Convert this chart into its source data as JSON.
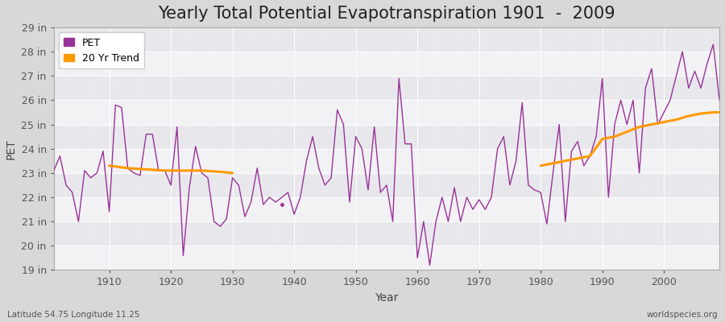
{
  "title": "Yearly Total Potential Evapotranspiration 1901  -  2009",
  "xlabel": "Year",
  "ylabel": "PET",
  "footer_left": "Latitude 54.75 Longitude 11.25",
  "footer_right": "worldspecies.org",
  "ylim": [
    19,
    29
  ],
  "xlim": [
    1901,
    2009
  ],
  "ytick_labels": [
    "19 in",
    "20 in",
    "21 in",
    "22 in",
    "23 in",
    "24 in",
    "25 in",
    "26 in",
    "27 in",
    "28 in",
    "29 in"
  ],
  "ytick_values": [
    19,
    20,
    21,
    22,
    23,
    24,
    25,
    26,
    27,
    28,
    29
  ],
  "xtick_values": [
    1910,
    1920,
    1930,
    1940,
    1950,
    1960,
    1970,
    1980,
    1990,
    2000
  ],
  "pet_color": "#993399",
  "trend_color": "#FF9900",
  "background_color": "#E8E8E8",
  "plot_bg_color": "#F0F0F0",
  "grid_color": "#FFFFFF",
  "pet_data": {
    "years": [
      1901,
      1902,
      1903,
      1904,
      1905,
      1906,
      1907,
      1908,
      1909,
      1910,
      1911,
      1912,
      1913,
      1914,
      1915,
      1916,
      1917,
      1918,
      1919,
      1920,
      1921,
      1922,
      1923,
      1924,
      1925,
      1926,
      1927,
      1928,
      1929,
      1930,
      1931,
      1932,
      1933,
      1934,
      1935,
      1936,
      1937,
      1939,
      1940,
      1941,
      1942,
      1943,
      1944,
      1945,
      1946,
      1947,
      1948,
      1949,
      1950,
      1951,
      1952,
      1953,
      1954,
      1955,
      1956,
      1957,
      1958,
      1959,
      1960,
      1961,
      1962,
      1963,
      1964,
      1965,
      1966,
      1967,
      1968,
      1969,
      1970,
      1971,
      1972,
      1973,
      1974,
      1975,
      1976,
      1977,
      1978,
      1979,
      1980,
      1981,
      1982,
      1983,
      1984,
      1985,
      1986,
      1987,
      1988,
      1989,
      1990,
      1991,
      1992,
      1993,
      1994,
      1995,
      1996,
      1997,
      1998,
      1999,
      2000,
      2001,
      2002,
      2003,
      2004,
      2005,
      2006,
      2007,
      2008,
      2009
    ],
    "values": [
      23.1,
      23.7,
      22.5,
      22.2,
      21.0,
      23.1,
      22.8,
      23.0,
      23.9,
      21.4,
      25.8,
      25.7,
      23.2,
      23.0,
      22.9,
      24.6,
      24.6,
      23.1,
      23.1,
      22.5,
      24.9,
      19.6,
      22.4,
      24.1,
      23.0,
      22.8,
      21.0,
      20.8,
      21.1,
      22.8,
      22.5,
      21.2,
      21.8,
      23.2,
      21.7,
      22.0,
      21.8,
      22.2,
      21.3,
      22.0,
      23.5,
      24.5,
      23.2,
      22.5,
      22.8,
      25.6,
      25.0,
      21.8,
      24.5,
      24.0,
      22.3,
      24.9,
      22.2,
      22.5,
      21.0,
      26.9,
      24.2,
      24.2,
      19.5,
      21.0,
      19.2,
      21.0,
      22.0,
      21.0,
      22.4,
      21.0,
      22.0,
      21.5,
      21.9,
      21.5,
      22.0,
      24.0,
      24.5,
      22.5,
      23.5,
      25.9,
      22.5,
      22.3,
      22.2,
      20.9,
      23.0,
      25.0,
      21.0,
      23.9,
      24.3,
      23.3,
      23.7,
      24.5,
      26.9,
      22.0,
      25.0,
      26.0,
      25.0,
      26.0,
      23.0,
      26.5,
      27.3,
      25.0,
      25.5,
      26.0,
      27.0,
      28.0,
      26.5,
      27.2,
      26.5,
      27.5,
      28.3,
      26.0
    ]
  },
  "dot_year": 1938,
  "dot_value": 21.7,
  "trend_segment1": {
    "years": [
      1910,
      1913,
      1916,
      1919,
      1922,
      1925,
      1928,
      1930
    ],
    "values": [
      23.3,
      23.2,
      23.15,
      23.1,
      23.1,
      23.1,
      23.05,
      23.0
    ]
  },
  "trend_segment2": {
    "years": [
      1980,
      1982,
      1984,
      1986,
      1988,
      1990,
      1992,
      1994,
      1996,
      1998,
      2000,
      2002,
      2004,
      2006,
      2008,
      2009
    ],
    "values": [
      23.3,
      23.4,
      23.5,
      23.6,
      23.7,
      24.4,
      24.5,
      24.7,
      24.9,
      25.0,
      25.1,
      25.2,
      25.35,
      25.45,
      25.5,
      25.5
    ]
  },
  "title_fontsize": 15,
  "axis_fontsize": 10,
  "tick_fontsize": 9,
  "legend_fontsize": 9
}
